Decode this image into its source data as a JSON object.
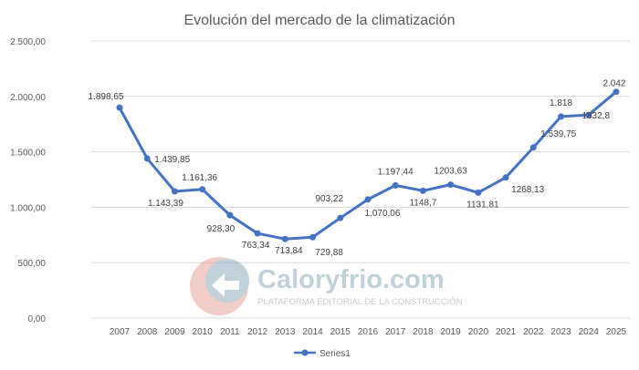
{
  "chart_data": {
    "type": "line",
    "title": "Evolución del mercado de la climatización",
    "categories": [
      "2007",
      "2008",
      "2009",
      "2010",
      "2011",
      "2012",
      "2013",
      "2014",
      "2015",
      "2016",
      "2017",
      "2018",
      "2019",
      "2020",
      "2021",
      "2022",
      "2023",
      "2024",
      "2025"
    ],
    "series": [
      {
        "name": "Series1",
        "color": "#4472C4",
        "values": [
          1898.65,
          1439.85,
          1143.39,
          1161.36,
          928.3,
          763.34,
          713.84,
          729.88,
          903.22,
          1070.06,
          1197.44,
          1148.7,
          1203.63,
          1131.81,
          1268.13,
          1539.75,
          1818,
          1832.8,
          2042
        ],
        "data_labels": [
          "1.898,65",
          "1.439,85",
          "1.143,39",
          "1.161,36",
          "928,30",
          "763,34",
          "713,84",
          "729,88",
          "903,22",
          "1.070,06",
          "1.197,44",
          "1148,7",
          "1203,63",
          "1131,81",
          "1268,13",
          "1.539,75",
          "1.818",
          "1832,8",
          "2.042"
        ]
      }
    ],
    "y_ticks": [
      "0,00",
      "500,00",
      "1.000,00",
      "1.500,00",
      "2.000,00",
      "2.500,00"
    ],
    "ylim": [
      0,
      2500
    ],
    "grid": true,
    "legend_position": "bottom"
  },
  "watermark": {
    "brand": "Caloryfrio.com",
    "tagline": "PLATAFORMA EDITORIAL DE LA CONSTRUCCIÓN"
  }
}
